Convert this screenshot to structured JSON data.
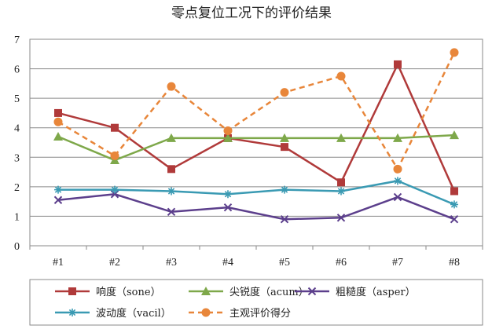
{
  "chart_data": {
    "type": "line",
    "title": "零点复位工况下的评价结果",
    "categories": [
      "#1",
      "#2",
      "#3",
      "#4",
      "#5",
      "#6",
      "#7",
      "#8"
    ],
    "ylim": [
      0,
      7
    ],
    "yticks": [
      0,
      1,
      2,
      3,
      4,
      5,
      6,
      7
    ],
    "grid": true,
    "xlabel": "",
    "ylabel": "",
    "legend_position": "bottom",
    "series": [
      {
        "name": "响度（sone）",
        "color": "#b03a3a",
        "marker": "square",
        "dashed": false,
        "values": [
          4.5,
          4.0,
          2.6,
          3.65,
          3.35,
          2.15,
          6.15,
          1.85
        ]
      },
      {
        "name": "尖锐度（acum）",
        "color": "#7ea84a",
        "marker": "triangle",
        "dashed": false,
        "values": [
          3.7,
          2.9,
          3.65,
          3.65,
          3.65,
          3.65,
          3.65,
          3.75
        ]
      },
      {
        "name": "粗糙度（asper）",
        "color": "#5c3f8c",
        "marker": "x",
        "dashed": false,
        "values": [
          1.55,
          1.75,
          1.15,
          1.3,
          0.9,
          0.95,
          1.65,
          0.9
        ]
      },
      {
        "name": "波动度（vacil）",
        "color": "#3a9ab3",
        "marker": "asterisk",
        "dashed": false,
        "values": [
          1.9,
          1.9,
          1.85,
          1.75,
          1.9,
          1.85,
          2.2,
          1.4
        ]
      },
      {
        "name": "主观评价得分",
        "color": "#e8863a",
        "marker": "circle",
        "dashed": true,
        "values": [
          4.2,
          3.05,
          5.4,
          3.9,
          5.2,
          5.75,
          2.6,
          6.55
        ]
      }
    ]
  }
}
